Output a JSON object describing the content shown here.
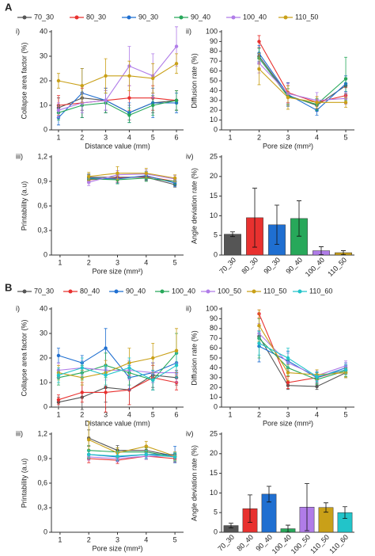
{
  "section_labels": [
    "A",
    "B"
  ],
  "chart_data": [
    {
      "type": "line",
      "panel": "i)",
      "xlabel": "Distance value (mm)",
      "ylabel": "Collapse area factor (%)",
      "x": [
        1,
        2,
        3,
        4,
        5,
        6
      ],
      "xlim": [
        0.7,
        6.3
      ],
      "xticks": [
        1,
        2,
        3,
        4,
        5,
        6
      ],
      "ylim": [
        0,
        40
      ],
      "yticks": [
        0,
        10,
        20,
        30,
        40
      ],
      "series": [
        {
          "name": "70_30",
          "color": "#555555",
          "values": [
            9,
            13,
            12,
            7,
            11,
            12
          ],
          "errors": [
            4,
            5,
            4,
            3,
            4,
            4
          ]
        },
        {
          "name": "80_30",
          "color": "#e8312f",
          "values": [
            10,
            11,
            12,
            13,
            13,
            12
          ],
          "errors": [
            4,
            6,
            5,
            5,
            5,
            4
          ]
        },
        {
          "name": "90_30",
          "color": "#1f6fd1",
          "values": [
            5,
            15,
            12,
            7,
            11,
            11
          ],
          "errors": [
            3,
            10,
            5,
            4,
            6,
            4
          ]
        },
        {
          "name": "90_40",
          "color": "#27a85a",
          "values": [
            7,
            10,
            11,
            6,
            10,
            12
          ],
          "errors": [
            3,
            5,
            4,
            3,
            4,
            4
          ]
        },
        {
          "name": "100_40",
          "color": "#b07ce8",
          "values": [
            8,
            11,
            12,
            26,
            22,
            34
          ],
          "errors": [
            3,
            4,
            4,
            8,
            9,
            8
          ]
        },
        {
          "name": "110_50",
          "color": "#c9a018",
          "values": [
            20,
            18,
            22,
            22,
            21,
            27
          ],
          "errors": [
            3,
            7,
            7,
            6,
            6,
            4
          ]
        }
      ]
    },
    {
      "type": "line",
      "panel": "ii)",
      "xlabel": "Pore size (mm²)",
      "ylabel": "Diffusion rate (%)",
      "x": [
        2,
        3,
        4,
        5
      ],
      "xlim": [
        0.7,
        5.3
      ],
      "xticks": [
        1,
        2,
        3,
        4,
        5
      ],
      "ylim": [
        0,
        100
      ],
      "yticks": [
        0,
        10,
        20,
        30,
        40,
        50,
        60,
        70,
        80,
        90,
        100
      ],
      "series": [
        {
          "name": "70_30",
          "color": "#555555",
          "values": [
            75,
            35,
            25,
            45
          ],
          "errors": [
            8,
            10,
            6,
            8
          ]
        },
        {
          "name": "80_30",
          "color": "#e8312f",
          "values": [
            90,
            38,
            28,
            35
          ],
          "errors": [
            6,
            10,
            6,
            8
          ]
        },
        {
          "name": "90_30",
          "color": "#1f6fd1",
          "values": [
            78,
            36,
            20,
            47
          ],
          "errors": [
            8,
            12,
            5,
            8
          ]
        },
        {
          "name": "90_40",
          "color": "#27a85a",
          "values": [
            73,
            34,
            26,
            52
          ],
          "errors": [
            10,
            8,
            6,
            22
          ]
        },
        {
          "name": "100_40",
          "color": "#b07ce8",
          "values": [
            68,
            37,
            30,
            32
          ],
          "errors": [
            10,
            10,
            8,
            6
          ]
        },
        {
          "name": "110_50",
          "color": "#c9a018",
          "values": [
            62,
            33,
            28,
            28
          ],
          "errors": [
            16,
            12,
            6,
            5
          ]
        }
      ]
    },
    {
      "type": "line",
      "panel": "iii)",
      "xlabel": "Pore size (mm²)",
      "ylabel": "Printability (a.u)",
      "x": [
        2,
        3,
        4,
        5
      ],
      "xlim": [
        0.7,
        5.3
      ],
      "xticks": [
        1,
        2,
        3,
        4,
        5
      ],
      "ylim": [
        0,
        1.2
      ],
      "yticks": [
        0,
        {
          "value": 0.3,
          "label": "0,3"
        },
        {
          "value": 0.6,
          "label": "0,6"
        },
        {
          "value": 0.9,
          "label": "0,9"
        },
        {
          "value": 1.2,
          "label": "1,2"
        }
      ],
      "series": [
        {
          "name": "70_30",
          "color": "#555555",
          "values": [
            0.95,
            0.95,
            0.95,
            0.86
          ],
          "errors": [
            0.04,
            0.04,
            0.04,
            0.03
          ]
        },
        {
          "name": "80_30",
          "color": "#e8312f",
          "values": [
            0.92,
            0.94,
            0.96,
            0.9
          ],
          "errors": [
            0.04,
            0.05,
            0.04,
            0.04
          ]
        },
        {
          "name": "90_30",
          "color": "#1f6fd1",
          "values": [
            0.94,
            0.93,
            0.97,
            0.88
          ],
          "errors": [
            0.04,
            0.05,
            0.05,
            0.04
          ]
        },
        {
          "name": "90_40",
          "color": "#27a85a",
          "values": [
            0.93,
            0.92,
            0.94,
            0.9
          ],
          "errors": [
            0.04,
            0.05,
            0.04,
            0.04
          ]
        },
        {
          "name": "100_40",
          "color": "#b07ce8",
          "values": [
            0.89,
            0.98,
            0.99,
            0.93
          ],
          "errors": [
            0.04,
            0.05,
            0.05,
            0.04
          ]
        },
        {
          "name": "110_50",
          "color": "#c9a018",
          "values": [
            0.96,
            1.0,
            1.0,
            0.94
          ],
          "errors": [
            0.05,
            0.08,
            0.06,
            0.04
          ]
        }
      ]
    },
    {
      "type": "bar",
      "panel": "iv)",
      "ylabel": "Angle deviation rate (%)",
      "categories": [
        "70_30",
        "80_30",
        "90_30",
        "90_40",
        "100_40",
        "110_50"
      ],
      "values": [
        5.3,
        9.5,
        7.7,
        9.3,
        1.1,
        0.6
      ],
      "errors": [
        0.6,
        7.5,
        5,
        4.5,
        1,
        0.5
      ],
      "colors": [
        "#555555",
        "#e8312f",
        "#1f6fd1",
        "#27a85a",
        "#b07ce8",
        "#c9a018"
      ],
      "ylim": [
        0,
        25
      ],
      "yticks": [
        0,
        5,
        10,
        15,
        20,
        25
      ]
    },
    {
      "type": "line",
      "panel": "i)",
      "xlabel": "Distance value (mm)",
      "ylabel": "Collapse area factor (%)",
      "x": [
        1,
        2,
        3,
        4,
        5,
        6
      ],
      "xlim": [
        0.7,
        6.3
      ],
      "xticks": [
        1,
        2,
        3,
        4,
        5,
        6
      ],
      "ylim": [
        0,
        40
      ],
      "yticks": [
        0,
        10,
        20,
        30,
        40
      ],
      "series": [
        {
          "name": "70_30",
          "color": "#555555",
          "values": [
            2,
            4,
            8,
            7,
            13,
            12
          ],
          "errors": [
            2,
            5,
            6,
            6,
            5,
            3
          ]
        },
        {
          "name": "80_40",
          "color": "#e8312f",
          "values": [
            3,
            6,
            6,
            7,
            12,
            10
          ],
          "errors": [
            2,
            4,
            8,
            6,
            5,
            3
          ]
        },
        {
          "name": "90_40",
          "color": "#1f6fd1",
          "values": [
            21,
            18,
            24,
            12,
            14,
            18
          ],
          "errors": [
            3,
            3,
            8,
            5,
            4,
            4
          ]
        },
        {
          "name": "100_40",
          "color": "#27a85a",
          "values": [
            12,
            14,
            17,
            14,
            11,
            22
          ],
          "errors": [
            3,
            3,
            5,
            5,
            4,
            8
          ]
        },
        {
          "name": "100_50",
          "color": "#b07ce8",
          "values": [
            15,
            16,
            15,
            15,
            14,
            14
          ],
          "errors": [
            3,
            3,
            4,
            4,
            4,
            4
          ]
        },
        {
          "name": "110_50",
          "color": "#c9a018",
          "values": [
            14,
            12,
            14,
            18,
            20,
            23
          ],
          "errors": [
            3,
            3,
            5,
            6,
            6,
            9
          ]
        },
        {
          "name": "110_60",
          "color": "#22c4c9",
          "values": [
            13,
            16,
            13,
            16,
            11,
            17
          ],
          "errors": [
            3,
            4,
            4,
            4,
            4,
            5
          ]
        }
      ]
    },
    {
      "type": "line",
      "panel": "ii)",
      "xlabel": "Pore size (mm²)",
      "ylabel": "Diffusion rate (%)",
      "x": [
        2,
        3,
        4,
        5
      ],
      "xlim": [
        0.7,
        5.3
      ],
      "xticks": [
        1,
        2,
        3,
        4,
        5
      ],
      "ylim": [
        0,
        100
      ],
      "yticks": [
        0,
        10,
        20,
        30,
        40,
        50,
        60,
        70,
        80,
        90,
        100
      ],
      "series": [
        {
          "name": "70_30",
          "color": "#555555",
          "values": [
            72,
            22,
            21,
            35
          ],
          "errors": [
            10,
            4,
            3,
            5
          ]
        },
        {
          "name": "80_40",
          "color": "#e8312f",
          "values": [
            95,
            25,
            30,
            38
          ],
          "errors": [
            4,
            6,
            5,
            5
          ]
        },
        {
          "name": "90_40",
          "color": "#1f6fd1",
          "values": [
            62,
            47,
            30,
            40
          ],
          "errors": [
            16,
            10,
            5,
            5
          ]
        },
        {
          "name": "100_40",
          "color": "#27a85a",
          "values": [
            70,
            40,
            28,
            37
          ],
          "errors": [
            20,
            8,
            5,
            6
          ]
        },
        {
          "name": "100_50",
          "color": "#b07ce8",
          "values": [
            75,
            45,
            32,
            42
          ],
          "errors": [
            10,
            10,
            5,
            5
          ]
        },
        {
          "name": "110_50",
          "color": "#c9a018",
          "values": [
            83,
            35,
            33,
            35
          ],
          "errors": [
            16,
            8,
            5,
            5
          ]
        },
        {
          "name": "110_60",
          "color": "#22c4c9",
          "values": [
            65,
            50,
            31,
            38
          ],
          "errors": [
            12,
            10,
            5,
            5
          ]
        }
      ]
    },
    {
      "type": "line",
      "panel": "iii)",
      "xlabel": "Pore size (mm²)",
      "ylabel": "Printability (a.u)",
      "x": [
        2,
        3,
        4,
        5
      ],
      "xlim": [
        0.7,
        5.3
      ],
      "xticks": [
        1,
        2,
        3,
        4,
        5
      ],
      "ylim": [
        0,
        1.2
      ],
      "yticks": [
        0,
        {
          "value": 0.3,
          "label": "0,3"
        },
        {
          "value": 0.6,
          "label": "0,6"
        },
        {
          "value": 0.9,
          "label": "0,9"
        },
        {
          "value": 1.2,
          "label": "1,2"
        }
      ],
      "series": [
        {
          "name": "70_30",
          "color": "#555555",
          "values": [
            1.15,
            1.0,
            1.0,
            0.93
          ],
          "errors": [
            0.1,
            0.06,
            0.06,
            0.05
          ]
        },
        {
          "name": "80_40",
          "color": "#e8312f",
          "values": [
            0.9,
            0.88,
            0.93,
            0.9
          ],
          "errors": [
            0.05,
            0.04,
            0.04,
            0.04
          ]
        },
        {
          "name": "90_40",
          "color": "#1f6fd1",
          "values": [
            0.95,
            0.92,
            0.95,
            0.95
          ],
          "errors": [
            0.05,
            0.05,
            0.05,
            0.1
          ]
        },
        {
          "name": "100_40",
          "color": "#27a85a",
          "values": [
            1.0,
            0.98,
            0.98,
            0.92
          ],
          "errors": [
            0.06,
            0.05,
            0.05,
            0.04
          ]
        },
        {
          "name": "100_50",
          "color": "#b07ce8",
          "values": [
            0.92,
            0.9,
            0.93,
            0.93
          ],
          "errors": [
            0.04,
            0.04,
            0.04,
            0.04
          ]
        },
        {
          "name": "110_50",
          "color": "#c9a018",
          "values": [
            1.13,
            0.97,
            1.05,
            0.93
          ],
          "errors": [
            0.22,
            0.06,
            0.06,
            0.05
          ]
        },
        {
          "name": "110_60",
          "color": "#22c4c9",
          "values": [
            0.95,
            0.93,
            0.95,
            0.92
          ],
          "errors": [
            0.05,
            0.05,
            0.05,
            0.05
          ]
        }
      ]
    },
    {
      "type": "bar",
      "panel": "iv)",
      "ylabel": "Angle deviation rate (%)",
      "categories": [
        "70_30",
        "80_40",
        "90_40",
        "100_40",
        "100_50",
        "110_50",
        "110_60"
      ],
      "values": [
        1.7,
        6,
        9.7,
        0.9,
        6.4,
        6.3,
        5
      ],
      "errors": [
        0.6,
        3.5,
        2,
        0.9,
        6,
        1.2,
        1.5
      ],
      "colors": [
        "#555555",
        "#e8312f",
        "#1f6fd1",
        "#27a85a",
        "#b07ce8",
        "#c9a018",
        "#22c4c9"
      ],
      "ylim": [
        0,
        25
      ],
      "yticks": [
        0,
        5,
        10,
        15,
        20,
        25
      ]
    }
  ]
}
